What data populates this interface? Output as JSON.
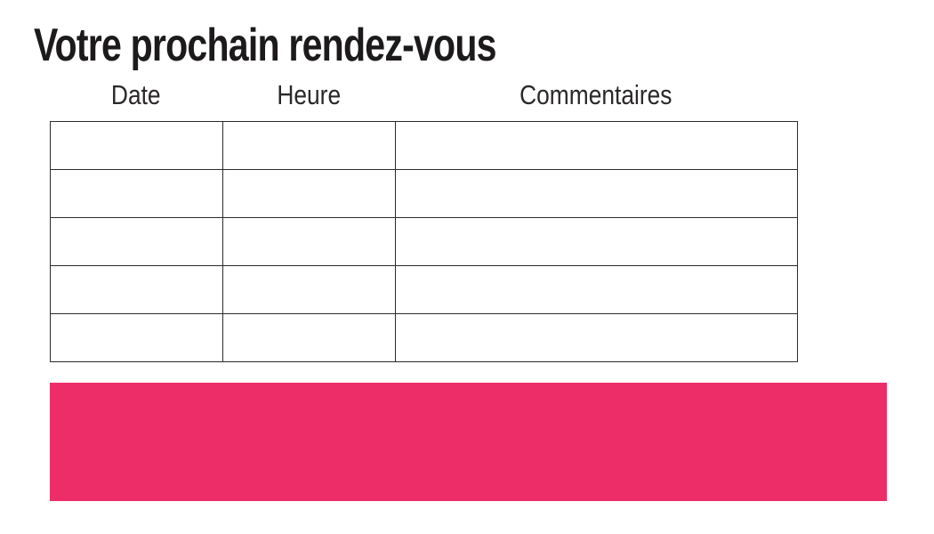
{
  "page": {
    "background": "#ffffff"
  },
  "header": {
    "title": "Votre prochain rendez-vous"
  },
  "appointments_table": {
    "columns": [
      "Date",
      "Heure",
      "Commentaires"
    ],
    "rows": [
      [
        "",
        "",
        ""
      ],
      [
        "",
        "",
        ""
      ],
      [
        "",
        "",
        ""
      ],
      [
        "",
        "",
        ""
      ],
      [
        "",
        "",
        ""
      ]
    ]
  },
  "highlight": {
    "color": "#ED2D68"
  },
  "colors": {
    "title_text": "#1d1a1b",
    "header_text": "#2b2829",
    "table_border": "#2b2b2b"
  }
}
